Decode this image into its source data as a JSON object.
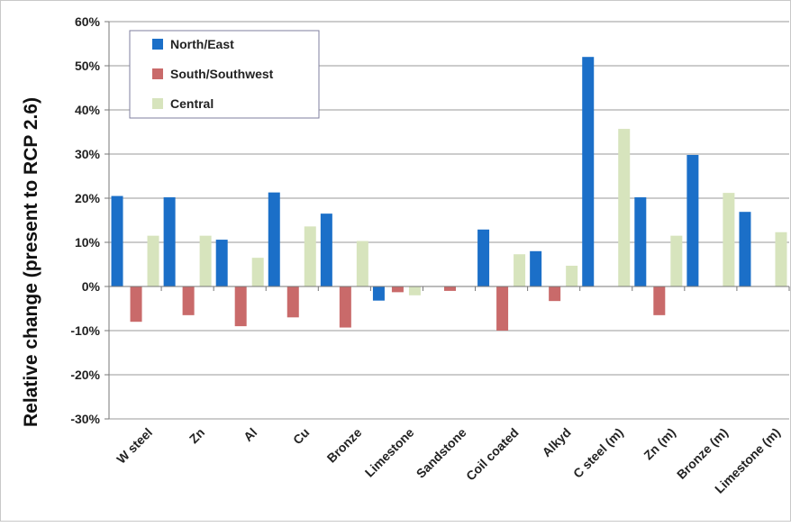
{
  "chart_data": {
    "type": "bar",
    "title": "",
    "xlabel": "",
    "ylabel": "Relative change (present to RCP 2.6)",
    "ylim": [
      -30,
      60
    ],
    "y_ticks": [
      "-30%",
      "-20%",
      "-10%",
      "0%",
      "10%",
      "20%",
      "30%",
      "40%",
      "50%",
      "60%"
    ],
    "y_tick_values": [
      -30,
      -20,
      -10,
      0,
      10,
      20,
      30,
      40,
      50,
      60
    ],
    "grid": true,
    "legend_position": "top-left",
    "categories": [
      "W steel",
      "Zn",
      "Al",
      "Cu",
      "Bronze",
      "Limestone",
      "Sandstone",
      "Coil coated",
      "Alkyd",
      "C steel (m)",
      "Zn (m)",
      "Bronze (m)",
      "Limestone (m)"
    ],
    "series": [
      {
        "name": "North/East",
        "color": "#1b6fc8",
        "values": [
          20.5,
          20.2,
          10.6,
          21.3,
          16.5,
          -3.2,
          0,
          12.9,
          8.0,
          52.0,
          20.2,
          29.8,
          16.9
        ]
      },
      {
        "name": "South/Southwest",
        "color": "#c96a6a",
        "values": [
          -8.0,
          -6.5,
          -9.0,
          -7.0,
          -9.3,
          -1.3,
          -1.0,
          -10.0,
          -3.3,
          0,
          -6.5,
          0,
          0
        ]
      },
      {
        "name": "Central",
        "color": "#d7e4bd",
        "values": [
          11.5,
          11.5,
          6.5,
          13.6,
          10.3,
          -2.0,
          0,
          7.3,
          4.7,
          35.7,
          11.5,
          21.2,
          12.3
        ]
      }
    ]
  }
}
